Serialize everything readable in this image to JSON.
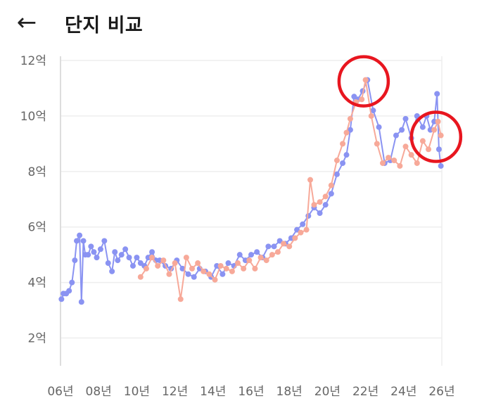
{
  "header": {
    "back_icon": "arrow-left-icon",
    "back_glyph": "←",
    "title": "단지 비교"
  },
  "colors": {
    "series_a": "#8a93f2",
    "series_b": "#f7a999",
    "grid": "#eeeeee",
    "axis": "#dddddd",
    "highlight_circle": "#e8161f"
  },
  "chart_data": {
    "type": "line",
    "title": "",
    "xlabel": "",
    "ylabel": "",
    "x_tick_labels": [
      "06년",
      "08년",
      "10년",
      "12년",
      "14년",
      "16년",
      "18년",
      "20년",
      "22년",
      "24년",
      "26년"
    ],
    "y_tick_labels": [
      "2억",
      "4억",
      "6억",
      "8억",
      "10억",
      "12억"
    ],
    "x_ticks": [
      2006,
      2008,
      2010,
      2012,
      2014,
      2016,
      2018,
      2020,
      2022,
      2024,
      2026
    ],
    "y_ticks": [
      2,
      4,
      6,
      8,
      10,
      12
    ],
    "xlim": [
      2006,
      2026
    ],
    "ylim": [
      1,
      12
    ],
    "grid": true,
    "legend": "none",
    "series": [
      {
        "color": "#8a93f2",
        "x": [
          2006.05,
          2006.15,
          2006.3,
          2006.45,
          2006.6,
          2006.75,
          2006.85,
          2007.0,
          2007.1,
          2007.2,
          2007.3,
          2007.45,
          2007.6,
          2007.75,
          2007.9,
          2008.1,
          2008.3,
          2008.5,
          2008.7,
          2008.85,
          2009.0,
          2009.2,
          2009.4,
          2009.6,
          2009.8,
          2010.0,
          2010.2,
          2010.4,
          2010.6,
          2010.8,
          2011.0,
          2011.2,
          2011.5,
          2011.8,
          2012.1,
          2012.4,
          2012.7,
          2013.0,
          2013.3,
          2013.6,
          2013.9,
          2014.2,
          2014.5,
          2014.8,
          2015.1,
          2015.4,
          2015.7,
          2016.0,
          2016.3,
          2016.6,
          2016.9,
          2017.2,
          2017.5,
          2017.8,
          2018.1,
          2018.4,
          2018.7,
          2019.0,
          2019.3,
          2019.6,
          2019.9,
          2020.2,
          2020.5,
          2020.8,
          2021.0,
          2021.2,
          2021.4,
          2021.6,
          2021.85,
          2022.1,
          2022.4,
          2022.7,
          2023.0,
          2023.3,
          2023.6,
          2023.9,
          2024.1,
          2024.4,
          2024.7,
          2025.0,
          2025.2,
          2025.4,
          2025.6,
          2025.75,
          2025.85,
          2025.95
        ],
        "y": [
          3.4,
          3.6,
          3.6,
          3.7,
          4.0,
          4.8,
          5.5,
          5.7,
          3.3,
          5.5,
          5.0,
          5.0,
          5.3,
          5.1,
          4.9,
          5.2,
          5.5,
          4.7,
          4.4,
          5.1,
          4.8,
          5.0,
          5.2,
          4.9,
          4.6,
          4.9,
          4.7,
          4.6,
          4.9,
          5.1,
          4.8,
          4.8,
          4.6,
          4.5,
          4.8,
          4.5,
          4.3,
          4.2,
          4.5,
          4.4,
          4.2,
          4.6,
          4.3,
          4.7,
          4.6,
          5.0,
          4.8,
          5.0,
          5.1,
          4.9,
          5.3,
          5.3,
          5.5,
          5.4,
          5.6,
          5.9,
          6.1,
          6.4,
          6.7,
          6.5,
          6.8,
          7.2,
          7.9,
          8.3,
          8.6,
          9.5,
          10.7,
          10.6,
          10.9,
          11.3,
          10.2,
          9.6,
          8.3,
          8.4,
          9.3,
          9.5,
          9.9,
          9.2,
          10.0,
          9.6,
          10.0,
          9.5,
          9.8,
          10.8,
          8.8,
          8.2
        ]
      },
      {
        "color": "#f7a999",
        "x": [
          2010.2,
          2010.5,
          2010.8,
          2011.1,
          2011.4,
          2011.7,
          2012.0,
          2012.3,
          2012.6,
          2012.9,
          2013.2,
          2013.5,
          2013.8,
          2014.1,
          2014.4,
          2014.7,
          2015.0,
          2015.3,
          2015.6,
          2015.9,
          2016.2,
          2016.5,
          2016.8,
          2017.1,
          2017.4,
          2017.7,
          2018.0,
          2018.3,
          2018.6,
          2018.9,
          2019.1,
          2019.3,
          2019.6,
          2019.9,
          2020.2,
          2020.5,
          2020.8,
          2021.0,
          2021.2,
          2021.5,
          2021.8,
          2022.0,
          2022.3,
          2022.6,
          2022.9,
          2023.2,
          2023.5,
          2023.8,
          2024.1,
          2024.4,
          2024.7,
          2025.0,
          2025.3,
          2025.6,
          2025.8,
          2025.95
        ],
        "y": [
          4.2,
          4.5,
          4.9,
          4.6,
          4.8,
          4.3,
          4.7,
          3.4,
          4.9,
          4.5,
          4.7,
          4.4,
          4.3,
          4.1,
          4.6,
          4.5,
          4.4,
          4.7,
          4.5,
          4.8,
          4.5,
          4.9,
          4.8,
          5.0,
          5.1,
          5.4,
          5.3,
          5.6,
          5.8,
          5.9,
          7.7,
          6.8,
          6.9,
          7.1,
          7.5,
          8.4,
          9.0,
          9.4,
          9.9,
          10.5,
          10.6,
          11.3,
          10.0,
          9.0,
          8.3,
          8.5,
          8.4,
          8.2,
          8.9,
          8.6,
          8.3,
          9.1,
          8.8,
          9.5,
          9.8,
          9.3
        ]
      }
    ],
    "highlight_circles": [
      {
        "x": 2021.9,
        "y": 11.25
      },
      {
        "x": 2025.7,
        "y": 9.25
      }
    ]
  }
}
